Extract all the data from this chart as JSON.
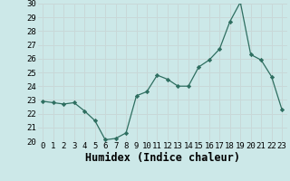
{
  "xlabel": "Humidex (Indice chaleur)",
  "x": [
    0,
    1,
    2,
    3,
    4,
    5,
    6,
    7,
    8,
    9,
    10,
    11,
    12,
    13,
    14,
    15,
    16,
    17,
    18,
    19,
    20,
    21,
    22,
    23
  ],
  "y": [
    22.9,
    22.8,
    22.7,
    22.8,
    22.2,
    21.5,
    20.1,
    20.2,
    20.6,
    23.3,
    23.6,
    24.8,
    24.5,
    24.0,
    24.0,
    25.4,
    25.9,
    26.7,
    28.7,
    30.1,
    26.3,
    25.9,
    24.7,
    22.3
  ],
  "bg_color": "#cce8e8",
  "grid_color": "#c8d8d8",
  "line_color": "#2e6e60",
  "marker_color": "#2e6e60",
  "ylim": [
    20,
    30
  ],
  "yticks": [
    20,
    21,
    22,
    23,
    24,
    25,
    26,
    27,
    28,
    29,
    30
  ],
  "xticks": [
    0,
    1,
    2,
    3,
    4,
    5,
    6,
    7,
    8,
    9,
    10,
    11,
    12,
    13,
    14,
    15,
    16,
    17,
    18,
    19,
    20,
    21,
    22,
    23
  ],
  "tick_label_fontsize": 6.5,
  "xlabel_fontsize": 8.5
}
